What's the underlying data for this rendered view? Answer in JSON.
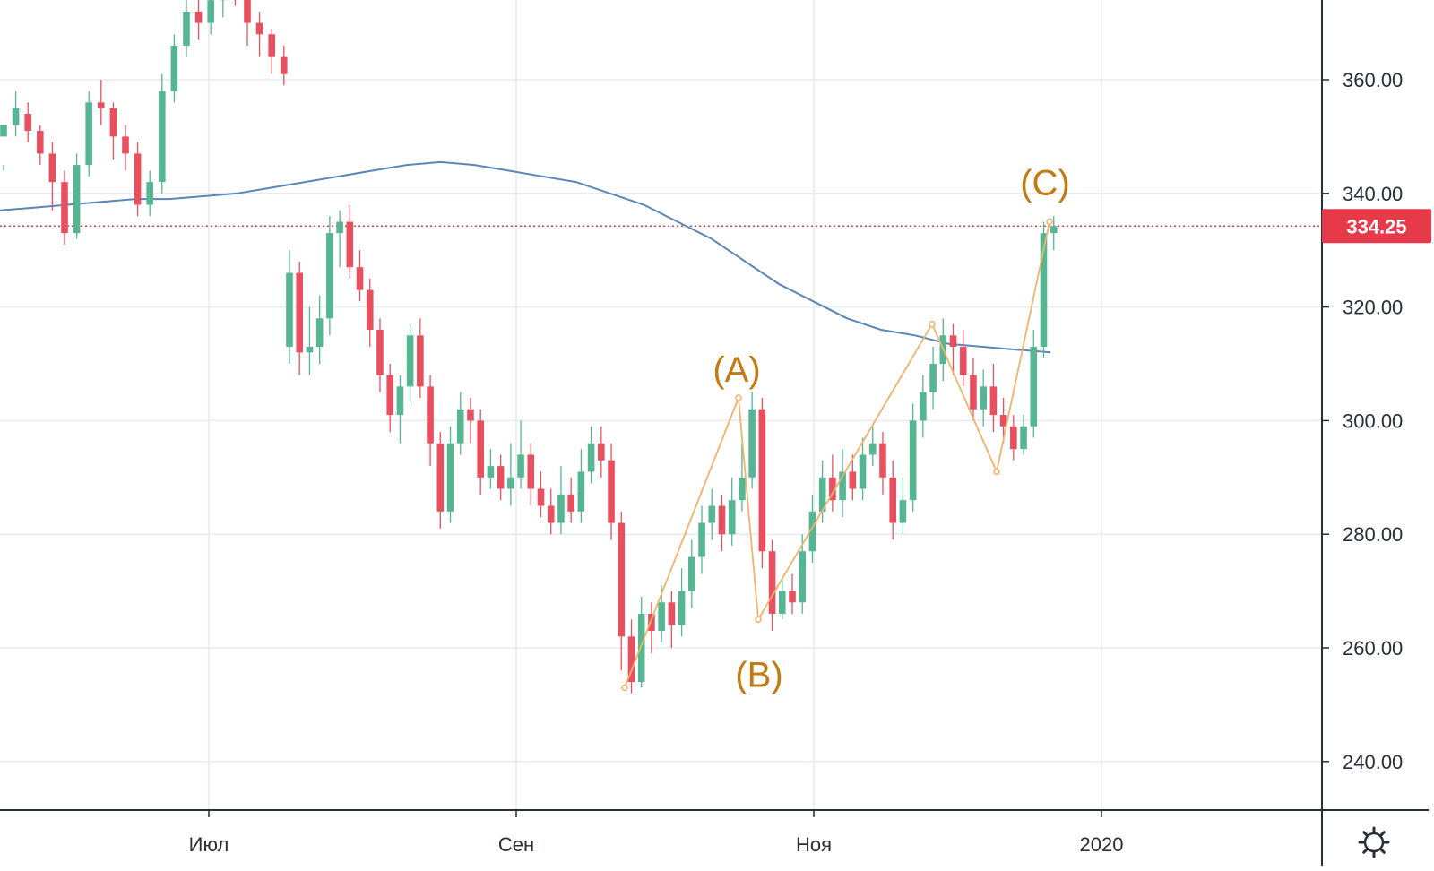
{
  "chart_data": {
    "type": "candlestick",
    "y_axis": {
      "ticks": [
        240,
        260,
        280,
        300,
        320,
        340,
        360
      ],
      "tick_labels": [
        "240.00",
        "260.00",
        "280.00",
        "300.00",
        "320.00",
        "340.00",
        "360.00"
      ],
      "position": "right"
    },
    "x_axis": {
      "tick_labels": [
        "Июл",
        "Сен",
        "Ноя",
        "2020"
      ]
    },
    "grid": true,
    "last_price": {
      "value": 334.25,
      "label": "334.25"
    },
    "wave_labels": [
      {
        "text": "(A)",
        "value": 304
      },
      {
        "text": "(B)",
        "value": 265
      },
      {
        "text": "(C)",
        "value": 335
      }
    ],
    "wave_path": [
      253,
      304,
      265,
      317,
      291,
      335
    ],
    "moving_average": [
      337,
      337.5,
      338,
      338.5,
      339,
      339,
      339.5,
      340,
      341,
      342,
      343,
      344,
      345,
      345.5,
      345,
      344,
      343,
      342,
      340,
      338,
      335,
      332,
      328,
      324,
      321,
      318,
      316,
      315,
      313.5,
      313,
      312.5,
      312
    ],
    "candles": [
      [
        350,
        352,
        345,
        344
      ],
      [
        352,
        355,
        358,
        350
      ],
      [
        354,
        351,
        356,
        349
      ],
      [
        351,
        347,
        352,
        345
      ],
      [
        347,
        342,
        349,
        337
      ],
      [
        342,
        333,
        344,
        331
      ],
      [
        333,
        345,
        347,
        332
      ],
      [
        345,
        356,
        358,
        343
      ],
      [
        356,
        355,
        360,
        352
      ],
      [
        355,
        350,
        356,
        346
      ],
      [
        350,
        347,
        352,
        344
      ],
      [
        347,
        338,
        349,
        336
      ],
      [
        338,
        342,
        344,
        336
      ],
      [
        342,
        358,
        361,
        340
      ],
      [
        358,
        366,
        368,
        356
      ],
      [
        366,
        372,
        375,
        364
      ],
      [
        372,
        370,
        376,
        367
      ],
      [
        370,
        374,
        378,
        368
      ],
      [
        374,
        377,
        380,
        371
      ],
      [
        377,
        375,
        379,
        373
      ],
      [
        375,
        370,
        376,
        366
      ],
      [
        370,
        368,
        372,
        364
      ],
      [
        368,
        364,
        369,
        361
      ],
      [
        364,
        361,
        366,
        359
      ],
      [
        313,
        326,
        330,
        310
      ],
      [
        326,
        312,
        328,
        308
      ],
      [
        312,
        313,
        320,
        308
      ],
      [
        313,
        318,
        322,
        310
      ],
      [
        318,
        333,
        336,
        315
      ],
      [
        333,
        335,
        337,
        327
      ],
      [
        335,
        327,
        338,
        325
      ],
      [
        327,
        323,
        330,
        321
      ],
      [
        323,
        316,
        325,
        313
      ],
      [
        316,
        308,
        318,
        305
      ],
      [
        308,
        301,
        310,
        298
      ],
      [
        301,
        306,
        308,
        296
      ],
      [
        306,
        315,
        317,
        303
      ],
      [
        315,
        306,
        318,
        304
      ],
      [
        306,
        296,
        308,
        292
      ],
      [
        296,
        284,
        298,
        281
      ],
      [
        284,
        296,
        299,
        282
      ],
      [
        296,
        302,
        305,
        294
      ],
      [
        302,
        300,
        304,
        296
      ],
      [
        300,
        290,
        302,
        287
      ],
      [
        290,
        292,
        295,
        288
      ],
      [
        292,
        288,
        294,
        286
      ],
      [
        288,
        290,
        296,
        285
      ],
      [
        290,
        294,
        300,
        288
      ],
      [
        294,
        288,
        296,
        285
      ],
      [
        288,
        285,
        291,
        283
      ],
      [
        285,
        282,
        288,
        280
      ],
      [
        282,
        287,
        292,
        280
      ],
      [
        287,
        284,
        290,
        282
      ],
      [
        284,
        291,
        295,
        282
      ],
      [
        291,
        296,
        299,
        289
      ],
      [
        296,
        293,
        299,
        290
      ],
      [
        293,
        282,
        296,
        279
      ],
      [
        282,
        262,
        284,
        256
      ],
      [
        262,
        254,
        265,
        252
      ],
      [
        254,
        266,
        269,
        253
      ],
      [
        266,
        263,
        268,
        259
      ],
      [
        263,
        268,
        271,
        261
      ],
      [
        268,
        264,
        270,
        260
      ],
      [
        264,
        270,
        274,
        262
      ],
      [
        270,
        276,
        279,
        267
      ],
      [
        276,
        282,
        285,
        273
      ],
      [
        282,
        285,
        288,
        279
      ],
      [
        285,
        280,
        287,
        277
      ],
      [
        280,
        286,
        290,
        278
      ],
      [
        286,
        290,
        296,
        284
      ],
      [
        290,
        302,
        305,
        288
      ],
      [
        302,
        277,
        304,
        274
      ],
      [
        277,
        266,
        279,
        263
      ],
      [
        266,
        270,
        272,
        265
      ],
      [
        270,
        268,
        273,
        266
      ],
      [
        268,
        277,
        280,
        266
      ],
      [
        277,
        284,
        287,
        275
      ],
      [
        284,
        290,
        293,
        282
      ],
      [
        290,
        286,
        294,
        284
      ],
      [
        286,
        291,
        295,
        283
      ],
      [
        291,
        288,
        294,
        286
      ],
      [
        288,
        294,
        297,
        286
      ],
      [
        294,
        296,
        299,
        292
      ],
      [
        296,
        290,
        298,
        287
      ],
      [
        290,
        282,
        293,
        279
      ],
      [
        282,
        286,
        290,
        280
      ],
      [
        286,
        300,
        303,
        284
      ],
      [
        300,
        305,
        308,
        297
      ],
      [
        305,
        310,
        313,
        302
      ],
      [
        310,
        315,
        318,
        307
      ],
      [
        315,
        313,
        317,
        308
      ],
      [
        313,
        308,
        316,
        306
      ],
      [
        308,
        302,
        311,
        300
      ],
      [
        302,
        306,
        309,
        299
      ],
      [
        306,
        301,
        310,
        298
      ],
      [
        301,
        299,
        304,
        296
      ],
      [
        299,
        295,
        301,
        293
      ],
      [
        295,
        299,
        301,
        294
      ],
      [
        299,
        313,
        316,
        297
      ],
      [
        313,
        333,
        335,
        311
      ],
      [
        333,
        334.25,
        336,
        330
      ]
    ]
  }
}
